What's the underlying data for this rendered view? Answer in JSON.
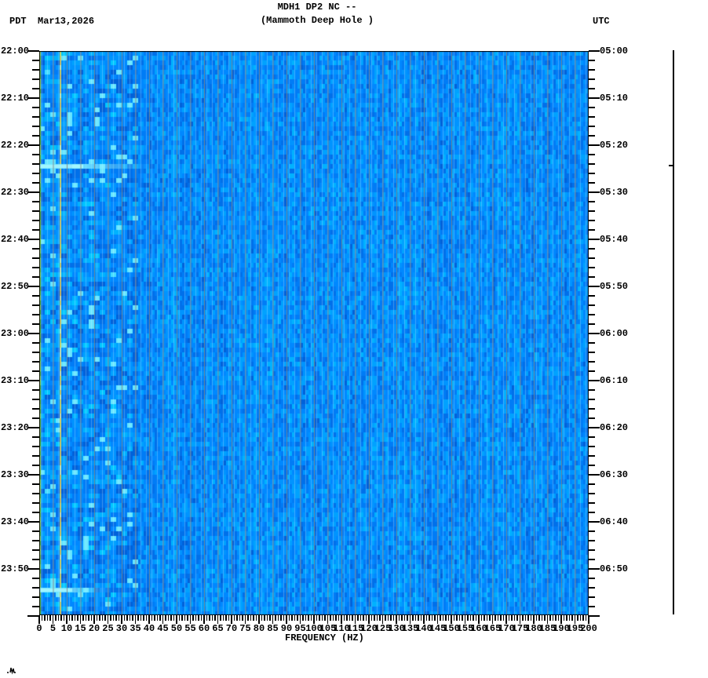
{
  "header": {
    "title_line1": "MDH1 DP2 NC --",
    "title_line2": "(Mammoth Deep Hole )",
    "left_timezone_date": "PDT  Mar13,2026",
    "right_timezone": "UTC"
  },
  "chart_data": {
    "type": "heatmap",
    "title": "MDH1 DP2 NC -- (Mammoth Deep Hole )",
    "station": "MDH1",
    "channel": "DP2",
    "network": "NC",
    "site_description": "Mammoth Deep Hole",
    "date_local": "Mar13,2026",
    "xlabel": "FREQUENCY (HZ)",
    "x_range_hz": [
      0,
      200
    ],
    "x_major_tick_step_hz": 5,
    "x_minor_tick_step_hz": 1,
    "x_tick_labels": [
      "0",
      "5",
      "10",
      "15",
      "20",
      "25",
      "30",
      "35",
      "40",
      "45",
      "50",
      "55",
      "60",
      "65",
      "70",
      "75",
      "80",
      "85",
      "90",
      "95",
      "100",
      "105",
      "110",
      "115",
      "120",
      "125",
      "130",
      "135",
      "140",
      "145",
      "150",
      "155",
      "160",
      "165",
      "170",
      "175",
      "180",
      "185",
      "190",
      "195",
      "200"
    ],
    "left_axis": {
      "timezone": "PDT",
      "start_time": "22:00",
      "end_time": "24:00",
      "major_tick_step_min": 10,
      "minor_tick_step_min": 2,
      "tick_labels": [
        "22:00",
        "22:10",
        "22:20",
        "22:30",
        "22:40",
        "22:50",
        "23:00",
        "23:10",
        "23:20",
        "23:30",
        "23:40",
        "23:50"
      ]
    },
    "right_axis": {
      "timezone": "UTC",
      "start_time": "05:00",
      "end_time": "07:00",
      "major_tick_step_min": 10,
      "minor_tick_step_min": 2,
      "tick_labels": [
        "05:00",
        "05:10",
        "05:20",
        "05:30",
        "05:40",
        "05:50",
        "06:00",
        "06:10",
        "06:20",
        "06:30",
        "06:40",
        "06:50"
      ]
    },
    "grid": {
      "vertical_lines_every_hz": 5,
      "color": "#808080"
    },
    "noise_seed": 1337,
    "background_palette": [
      "#0062da",
      "#0070ea",
      "#007cf6",
      "#0088ff",
      "#0094ff",
      "#00a2ff",
      "#00b2ff",
      "#00c6ff",
      "#44dcff"
    ],
    "low_freq_bright_cell_color": "#66e6ff",
    "persistent_lines": [
      {
        "name": "dc-edge-band",
        "freq_hz": 0,
        "width_hz": 0.6,
        "colors": [
          "#8fdf4a",
          "#b2ef62",
          "#74cf3c"
        ]
      },
      {
        "name": "narrowband-7.5hz",
        "freq_hz": 7.5,
        "width_hz": 0.45,
        "colors": [
          "#ffe23c",
          "#ffd24a",
          "#fff7a0",
          "#ffc83c"
        ]
      }
    ],
    "events": [
      {
        "time_local": "22:24",
        "row_minute": 24,
        "fade_out_hz": 40,
        "core_hz": 16,
        "color": "#86f0ff"
      },
      {
        "time_local": "23:54",
        "row_minute": 114,
        "fade_out_hz": 26,
        "core_hz": 12,
        "color": "#86f0ff"
      }
    ],
    "amplitude_trace": {
      "present": true,
      "event_blip_time_local": "22:24"
    }
  }
}
